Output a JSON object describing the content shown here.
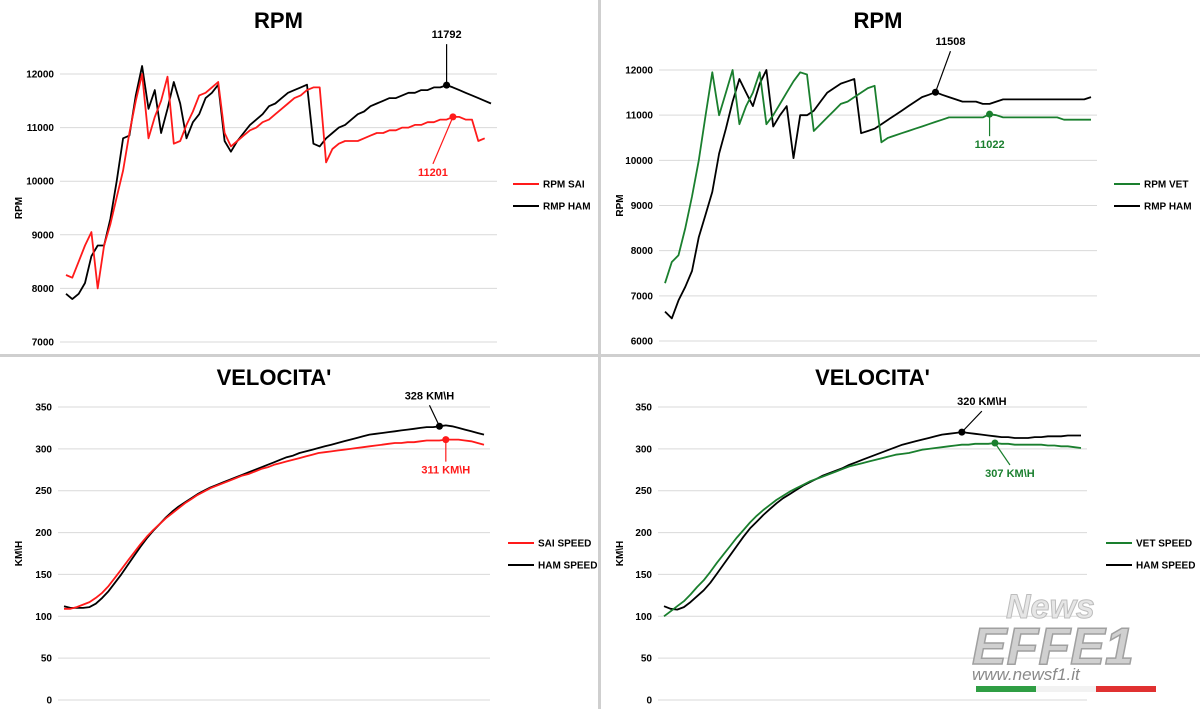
{
  "watermark": {
    "top_text": "News",
    "brand_text": "EFFE1",
    "url_text": "www.newsf1.it",
    "colors": [
      "#2f9e44",
      "#ffffff",
      "#e03131"
    ]
  },
  "chart_data": [
    {
      "id": "rpm_sai_ham",
      "type": "line",
      "title": "RPM",
      "ylabel": "RPM",
      "xlabel": "",
      "ylim": [
        7000,
        12000
      ],
      "yticks": [
        7000,
        8000,
        9000,
        10000,
        11000,
        12000
      ],
      "grid": true,
      "legend_position": "right",
      "series": [
        {
          "name": "RPM SAI",
          "color": "#ff1a1a",
          "values": [
            8250,
            8200,
            8500,
            8800,
            9050,
            8000,
            8800,
            9200,
            9700,
            10200,
            10900,
            11500,
            12000,
            10800,
            11200,
            11500,
            11950,
            10700,
            10750,
            11050,
            11300,
            11600,
            11650,
            11750,
            11850,
            10900,
            10650,
            10750,
            10850,
            10950,
            11000,
            11100,
            11150,
            11250,
            11350,
            11450,
            11550,
            11600,
            11700,
            11750,
            11750,
            10350,
            10600,
            10700,
            10750,
            10750,
            10750,
            10800,
            10850,
            10900,
            10900,
            10950,
            10950,
            11000,
            11000,
            11050,
            11050,
            11100,
            11100,
            11150,
            11150,
            11200,
            11200,
            11150,
            11150,
            10750,
            10800
          ],
          "annotation": {
            "label": "11201",
            "index": 61
          }
        },
        {
          "name": "RMP HAM",
          "color": "#000000",
          "values": [
            7900,
            7800,
            7900,
            8100,
            8600,
            8800,
            8800,
            9300,
            10000,
            10800,
            10850,
            11600,
            12150,
            11350,
            11700,
            10900,
            11350,
            11850,
            11450,
            10800,
            11100,
            11250,
            11550,
            11650,
            11800,
            10750,
            10550,
            10750,
            10900,
            11050,
            11150,
            11250,
            11400,
            11450,
            11550,
            11650,
            11700,
            11750,
            11800,
            10700,
            10650,
            10800,
            10900,
            11000,
            11050,
            11150,
            11250,
            11300,
            11400,
            11450,
            11500,
            11550,
            11550,
            11600,
            11650,
            11650,
            11700,
            11700,
            11750,
            11750,
            11792,
            11750,
            11700,
            11650,
            11600,
            11550,
            11500,
            11450
          ],
          "annotation": {
            "label": "11792",
            "index": 60
          }
        }
      ]
    },
    {
      "id": "rpm_vet_ham",
      "type": "line",
      "title": "RPM",
      "ylabel": "RPM",
      "xlabel": "",
      "ylim": [
        6000,
        12000
      ],
      "yticks": [
        6000,
        7000,
        8000,
        9000,
        10000,
        11000,
        12000
      ],
      "grid": true,
      "legend_position": "right",
      "series": [
        {
          "name": "RPM VET",
          "color": "#1a7f2e",
          "values": [
            7280,
            7750,
            7900,
            8500,
            9200,
            10000,
            11000,
            11950,
            11000,
            11500,
            12000,
            10800,
            11200,
            11500,
            11950,
            10800,
            11000,
            11250,
            11500,
            11750,
            11950,
            11900,
            10650,
            10800,
            10950,
            11100,
            11250,
            11300,
            11400,
            11500,
            11600,
            11650,
            10400,
            10500,
            10550,
            10600,
            10650,
            10700,
            10750,
            10800,
            10850,
            10900,
            10950,
            10950,
            10950,
            10950,
            10950,
            10950,
            11022,
            11000,
            10950,
            10950,
            10950,
            10950,
            10950,
            10950,
            10950,
            10950,
            10950,
            10900,
            10900,
            10900,
            10900,
            10900
          ],
          "annotation": {
            "label": "11022",
            "index": 48
          }
        },
        {
          "name": "RMP HAM",
          "color": "#000000",
          "values": [
            6650,
            6500,
            6900,
            7200,
            7550,
            8300,
            8800,
            9300,
            10150,
            10700,
            11300,
            11800,
            11500,
            11200,
            11700,
            12000,
            10750,
            11000,
            11200,
            10050,
            11000,
            11000,
            11100,
            11300,
            11500,
            11600,
            11700,
            11750,
            11800,
            10600,
            10650,
            10700,
            10800,
            10900,
            11000,
            11100,
            11200,
            11300,
            11400,
            11450,
            11508,
            11450,
            11400,
            11350,
            11300,
            11300,
            11300,
            11250,
            11250,
            11300,
            11350,
            11350,
            11350,
            11350,
            11350,
            11350,
            11350,
            11350,
            11350,
            11350,
            11350,
            11350,
            11350,
            11400
          ],
          "annotation": {
            "label": "11508",
            "index": 40
          }
        }
      ]
    },
    {
      "id": "speed_sai_ham",
      "type": "line",
      "title": "VELOCITA'",
      "ylabel": "KM\\H",
      "xlabel": "",
      "ylim": [
        0,
        350
      ],
      "yticks": [
        0,
        50,
        100,
        150,
        200,
        250,
        300,
        350
      ],
      "grid": true,
      "legend_position": "right",
      "series": [
        {
          "name": "SAI SPEED",
          "color": "#ff1a1a",
          "values": [
            109,
            109,
            111,
            114,
            117,
            122,
            128,
            136,
            146,
            156,
            166,
            176,
            186,
            195,
            203,
            210,
            217,
            223,
            229,
            235,
            240,
            245,
            249,
            253,
            256,
            259,
            262,
            265,
            268,
            270,
            273,
            276,
            278,
            281,
            283,
            285,
            287,
            289,
            291,
            293,
            295,
            296,
            297,
            298,
            299,
            300,
            301,
            302,
            303,
            304,
            305,
            306,
            307,
            307,
            308,
            308,
            309,
            310,
            310,
            310,
            311,
            311,
            311,
            310,
            309,
            307,
            305
          ],
          "annotation": {
            "label": "311 KM\\H",
            "index": 60
          }
        },
        {
          "name": "HAM SPEED",
          "color": "#000000",
          "values": [
            112,
            110,
            110,
            110,
            111,
            115,
            122,
            130,
            140,
            150,
            161,
            172,
            183,
            193,
            202,
            210,
            218,
            225,
            231,
            236,
            241,
            246,
            250,
            254,
            257,
            260,
            263,
            266,
            269,
            272,
            275,
            278,
            281,
            284,
            287,
            290,
            292,
            295,
            297,
            299,
            301,
            303,
            305,
            307,
            309,
            311,
            313,
            315,
            317,
            318,
            319,
            320,
            321,
            322,
            323,
            324,
            325,
            326,
            326,
            327,
            328,
            327,
            325,
            323,
            321,
            319,
            317
          ],
          "annotation": {
            "label": "328 KM\\H",
            "index": 59
          }
        }
      ]
    },
    {
      "id": "speed_vet_ham",
      "type": "line",
      "title": "VELOCITA'",
      "ylabel": "KM\\H",
      "xlabel": "",
      "ylim": [
        0,
        350
      ],
      "yticks": [
        0,
        50,
        100,
        150,
        200,
        250,
        300,
        350
      ],
      "grid": true,
      "legend_position": "right",
      "series": [
        {
          "name": "VET SPEED",
          "color": "#1a7f2e",
          "values": [
            100,
            106,
            112,
            118,
            126,
            135,
            143,
            153,
            164,
            174,
            184,
            194,
            203,
            212,
            220,
            227,
            233,
            239,
            244,
            249,
            253,
            257,
            261,
            264,
            267,
            270,
            273,
            276,
            279,
            281,
            283,
            285,
            287,
            289,
            291,
            293,
            294,
            295,
            297,
            299,
            300,
            301,
            302,
            303,
            304,
            305,
            305,
            306,
            306,
            306,
            307,
            306,
            306,
            305,
            305,
            305,
            305,
            305,
            304,
            304,
            303,
            303,
            302,
            301
          ],
          "annotation": {
            "label": "307 KM\\H",
            "index": 50
          }
        },
        {
          "name": "HAM SPEED",
          "color": "#000000",
          "values": [
            112,
            109,
            108,
            111,
            117,
            124,
            131,
            140,
            151,
            162,
            173,
            184,
            195,
            205,
            213,
            221,
            228,
            235,
            241,
            246,
            251,
            256,
            260,
            264,
            268,
            271,
            274,
            277,
            281,
            284,
            287,
            290,
            293,
            296,
            299,
            302,
            305,
            307,
            309,
            311,
            313,
            315,
            317,
            318,
            319,
            320,
            319,
            318,
            317,
            316,
            315,
            314,
            314,
            313,
            313,
            313,
            314,
            314,
            315,
            315,
            315,
            316,
            316,
            316
          ],
          "annotation": {
            "label": "320 KM\\H",
            "index": 45
          }
        }
      ]
    }
  ]
}
